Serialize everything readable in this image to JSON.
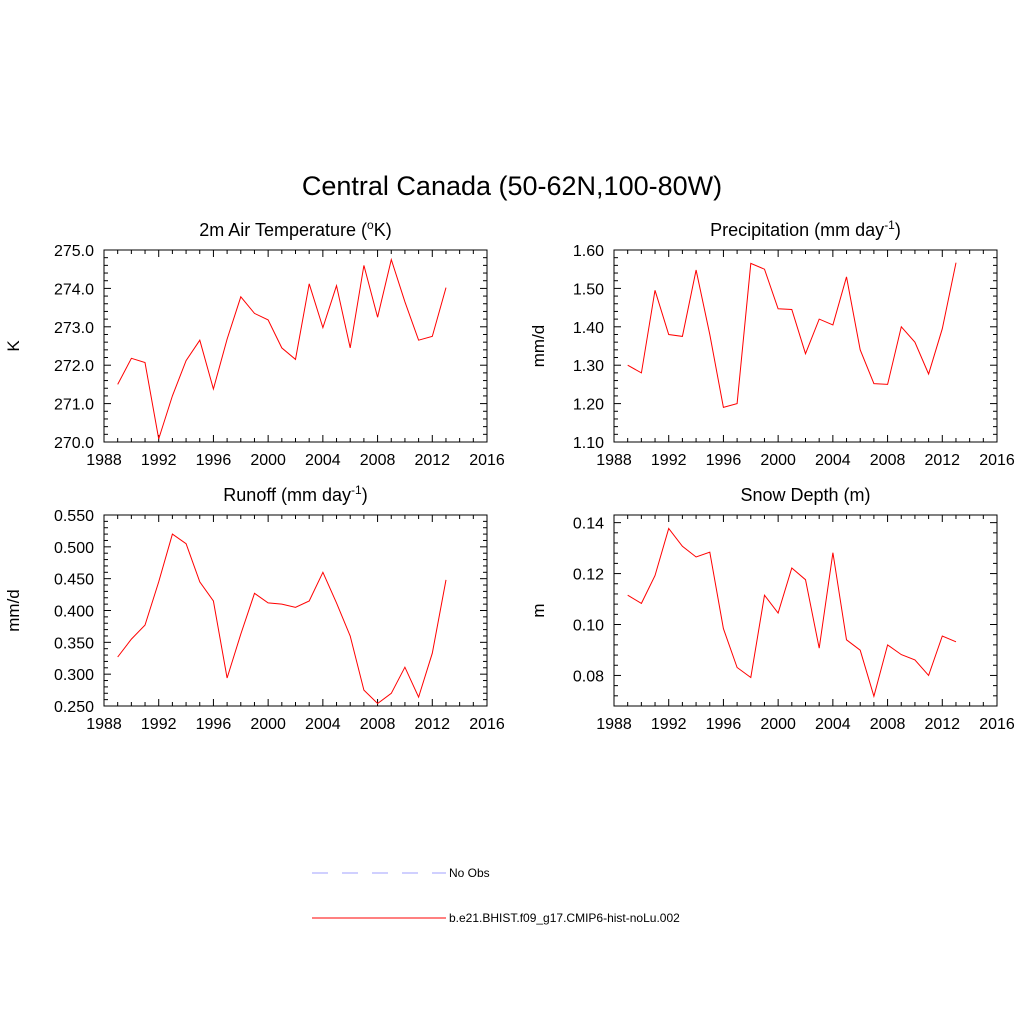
{
  "title": "Central Canada (50-62N,100-80W)",
  "colors": {
    "model": "#ff0000",
    "obs": "#a0a0ff",
    "axis": "#000000"
  },
  "chart_data": [
    {
      "type": "line",
      "title_main": "2m Air Temperature (",
      "title_sup": "o",
      "title_tail": "K)",
      "ylabel": "K",
      "xlim": [
        1988,
        2016
      ],
      "xticks": [
        1988,
        1992,
        1996,
        2000,
        2004,
        2008,
        2012,
        2016
      ],
      "ylim": [
        270.0,
        275.0
      ],
      "yticks": [
        "270.0",
        "271.0",
        "272.0",
        "273.0",
        "274.0",
        "275.0"
      ],
      "x": [
        1989,
        1990,
        1991,
        1992,
        1993,
        1994,
        1995,
        1996,
        1997,
        1998,
        1999,
        2000,
        2001,
        2002,
        2003,
        2004,
        2005,
        2006,
        2007,
        2008,
        2009,
        2010,
        2011,
        2012,
        2013
      ],
      "values": [
        271.5,
        272.18,
        272.07,
        270.08,
        271.2,
        272.12,
        272.65,
        271.38,
        272.68,
        273.78,
        273.35,
        273.18,
        272.45,
        272.15,
        274.12,
        272.98,
        274.07,
        272.45,
        274.6,
        273.25,
        274.75,
        273.65,
        272.65,
        272.75,
        274.02
      ]
    },
    {
      "type": "line",
      "title_main": "Precipitation (mm day",
      "title_sup": "-1",
      "title_tail": ")",
      "ylabel": "mm/d",
      "xlim": [
        1988,
        2016
      ],
      "xticks": [
        1988,
        1992,
        1996,
        2000,
        2004,
        2008,
        2012,
        2016
      ],
      "ylim": [
        1.1,
        1.6
      ],
      "yticks": [
        "1.10",
        "1.20",
        "1.30",
        "1.40",
        "1.50",
        "1.60"
      ],
      "x": [
        1989,
        1990,
        1991,
        1992,
        1993,
        1994,
        1995,
        1996,
        1997,
        1998,
        1999,
        2000,
        2001,
        2002,
        2003,
        2004,
        2005,
        2006,
        2007,
        2008,
        2009,
        2010,
        2011,
        2012,
        2013
      ],
      "values": [
        1.3,
        1.28,
        1.495,
        1.38,
        1.375,
        1.548,
        1.38,
        1.19,
        1.2,
        1.565,
        1.55,
        1.447,
        1.445,
        1.33,
        1.42,
        1.405,
        1.53,
        1.34,
        1.252,
        1.25,
        1.4,
        1.36,
        1.277,
        1.395,
        1.567
      ]
    },
    {
      "type": "line",
      "title_main": "Runoff (mm day",
      "title_sup": "-1",
      "title_tail": ")",
      "ylabel": "mm/d",
      "xlim": [
        1988,
        2016
      ],
      "xticks": [
        1988,
        1992,
        1996,
        2000,
        2004,
        2008,
        2012,
        2016
      ],
      "ylim": [
        0.25,
        0.55
      ],
      "yticks": [
        "0.250",
        "0.300",
        "0.350",
        "0.400",
        "0.450",
        "0.500",
        "0.550"
      ],
      "x": [
        1989,
        1990,
        1991,
        1992,
        1993,
        1994,
        1995,
        1996,
        1997,
        1998,
        1999,
        2000,
        2001,
        2002,
        2003,
        2004,
        2005,
        2006,
        2007,
        2008,
        2009,
        2010,
        2011,
        2012,
        2013
      ],
      "values": [
        0.327,
        0.355,
        0.377,
        0.445,
        0.52,
        0.505,
        0.445,
        0.415,
        0.294,
        0.363,
        0.427,
        0.412,
        0.41,
        0.405,
        0.415,
        0.46,
        0.412,
        0.36,
        0.275,
        0.254,
        0.27,
        0.311,
        0.264,
        0.333,
        0.448
      ]
    },
    {
      "type": "line",
      "title_main": "Snow Depth (m)",
      "title_sup": "",
      "title_tail": "",
      "ylabel": "m",
      "xlim": [
        1988,
        2016
      ],
      "xticks": [
        1988,
        1992,
        1996,
        2000,
        2004,
        2008,
        2012,
        2016
      ],
      "ylim": [
        0.068,
        0.143
      ],
      "yticks": [
        "0.08",
        "0.10",
        "0.12",
        "0.14"
      ],
      "ytick_values": [
        0.08,
        0.1,
        0.12,
        0.14
      ],
      "x": [
        1989,
        1990,
        1991,
        1992,
        1993,
        1994,
        1995,
        1996,
        1997,
        1998,
        1999,
        2000,
        2001,
        2002,
        2003,
        2004,
        2005,
        2006,
        2007,
        2008,
        2009,
        2010,
        2011,
        2012,
        2013
      ],
      "values": [
        0.1115,
        0.1083,
        0.1192,
        0.1377,
        0.1307,
        0.1265,
        0.1284,
        0.0984,
        0.0831,
        0.0792,
        0.1115,
        0.1045,
        0.1222,
        0.1176,
        0.0907,
        0.1282,
        0.094,
        0.0899,
        0.0718,
        0.092,
        0.0882,
        0.0861,
        0.08,
        0.0955,
        0.0932
      ]
    }
  ],
  "legend": [
    {
      "label": "No Obs",
      "style": "dashed"
    },
    {
      "label": "b.e21.BHIST.f09_g17.CMIP6-hist-noLu.002",
      "style": "solid"
    }
  ]
}
